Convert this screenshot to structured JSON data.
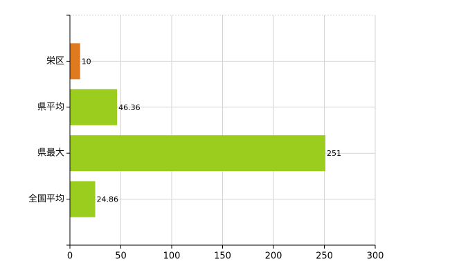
{
  "chart_data": {
    "type": "bar",
    "orientation": "horizontal",
    "categories": [
      "栄区",
      "県平均",
      "県最大",
      "全国平均"
    ],
    "values": [
      10,
      46.36,
      251,
      24.86
    ],
    "colors": [
      "#e07a1f",
      "#9acd1e",
      "#9acd1e",
      "#9acd1e"
    ],
    "xlim": [
      0,
      300
    ],
    "xticks": [
      0,
      50,
      100,
      150,
      200,
      250,
      300
    ],
    "grid": true,
    "show_value_labels": true
  }
}
